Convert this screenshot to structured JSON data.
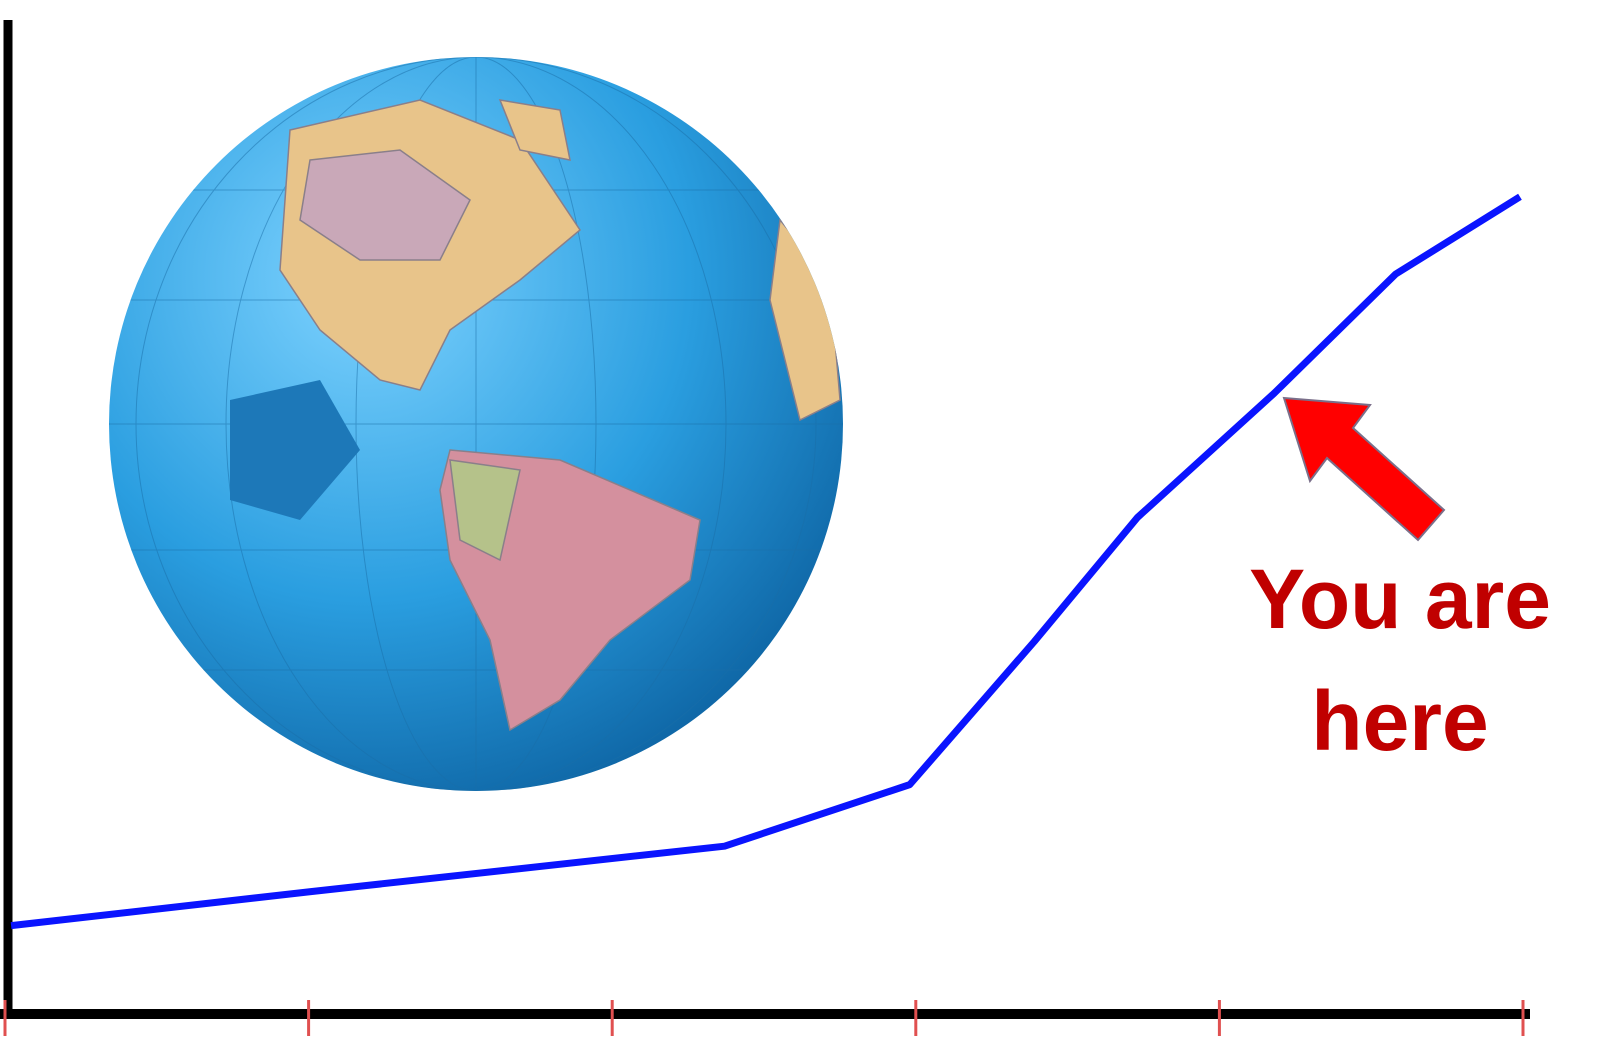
{
  "chart_data": {
    "type": "line",
    "annotation": "You are here",
    "x": [
      0.02,
      1.0,
      2.37,
      2.98,
      3.39,
      3.73,
      4.18,
      4.58,
      4.99
    ],
    "series": [
      {
        "color": "#0a14ff",
        "values": [
          8.9,
          12.3,
          16.9,
          23.1,
          37.5,
          50,
          62.5,
          74.5,
          82.3
        ]
      }
    ],
    "xlim": [
      0,
      5
    ],
    "xticks": [
      0,
      1,
      2,
      3,
      4,
      5
    ],
    "ylim": [
      0,
      100
    ],
    "annotation_color": "#c00000",
    "arrow_color": "#ff0000"
  }
}
